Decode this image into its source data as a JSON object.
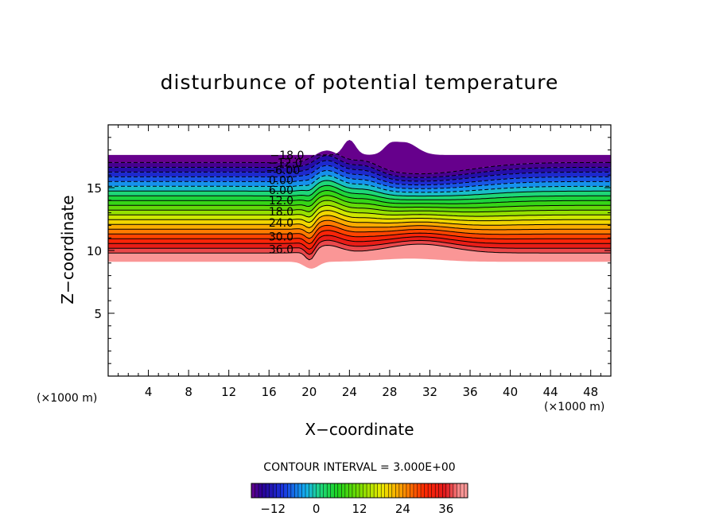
{
  "chart_data": {
    "type": "heatmap",
    "title": "disturbunce of potential temperature",
    "xlabel": "X−coordinate",
    "ylabel": "Z−coordinate",
    "x_unit": "(×1000 m)",
    "y_unit": "(×1000 m)",
    "xlim": [
      0,
      50
    ],
    "ylim": [
      0,
      20
    ],
    "x_ticks": [
      4,
      8,
      12,
      16,
      20,
      24,
      28,
      32,
      36,
      40,
      44,
      48
    ],
    "x_tick_labels": [
      "4",
      "8",
      "12",
      "16",
      "20",
      "24",
      "28",
      "32",
      "36",
      "40",
      "44",
      "48"
    ],
    "y_ticks": [
      5,
      10,
      15
    ],
    "y_tick_labels": [
      "5",
      "10",
      "15"
    ],
    "contour_interval_text": "CONTOUR INTERVAL = 3.000E+00",
    "contour_levels": [
      -18,
      -15,
      -12,
      -9,
      -6,
      -3,
      0,
      3,
      6,
      9,
      12,
      15,
      18,
      21,
      24,
      27,
      30,
      33,
      36,
      39
    ],
    "contour_labels": [
      {
        "value": -18,
        "text": "−18.0",
        "x": 17.8,
        "z": 17.6
      },
      {
        "value": -12,
        "text": "−12.0",
        "x": 17.6,
        "z": 17.0
      },
      {
        "value": -6,
        "text": "−6.00",
        "x": 17.4,
        "z": 16.4
      },
      {
        "value": 0,
        "text": "0.00",
        "x": 17.2,
        "z": 15.6
      },
      {
        "value": 6,
        "text": "6.00",
        "x": 17.2,
        "z": 14.8
      },
      {
        "value": 12,
        "text": "12.0",
        "x": 17.2,
        "z": 14.0
      },
      {
        "value": 18,
        "text": "18.0",
        "x": 17.2,
        "z": 13.1
      },
      {
        "value": 24,
        "text": "24.0",
        "x": 17.2,
        "z": 12.2
      },
      {
        "value": 30,
        "text": "30.0",
        "x": 17.2,
        "z": 11.1
      },
      {
        "value": 36,
        "text": "36.0",
        "x": 17.2,
        "z": 10.1
      }
    ],
    "colorbar": {
      "range": [
        -18,
        42
      ],
      "tick_values": [
        -12,
        0,
        12,
        24,
        36
      ],
      "tick_labels": [
        "−12",
        "0",
        "12",
        "24",
        "36"
      ]
    },
    "grid": false
  }
}
